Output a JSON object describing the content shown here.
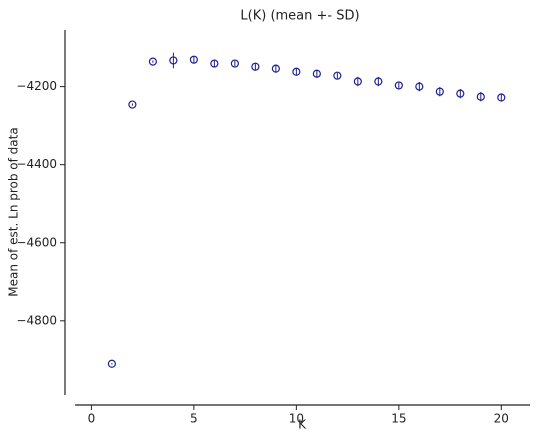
{
  "chart_data": {
    "type": "scatter",
    "title": "L(K) (mean +- SD)",
    "x_label": "K",
    "y_label": "Mean of est. Ln prob of data",
    "x": [
      1,
      2,
      3,
      4,
      5,
      6,
      7,
      8,
      9,
      10,
      11,
      12,
      13,
      14,
      15,
      16,
      17,
      18,
      19,
      20
    ],
    "series": [
      {
        "color": "#1f1f8f",
        "values": [
          -4910,
          -4246,
          -4136,
          -4133,
          -4131,
          -4141,
          -4141,
          -4149,
          -4154,
          -4162,
          -4167,
          -4172,
          -4187,
          -4187,
          -4197,
          -4200,
          -4213,
          -4218,
          -4226,
          -4228
        ],
        "errors": [
          2,
          3,
          3,
          20,
          8,
          8,
          7,
          10,
          10,
          8,
          8,
          7,
          12,
          12,
          10,
          12,
          12,
          12,
          12,
          9
        ]
      }
    ],
    "xlim": [
      -0.8,
      21.4
    ],
    "ylim": [
      -4990,
      -4055
    ],
    "xticks": [
      0,
      5,
      10,
      15,
      20
    ],
    "yticks": [
      {
        "value": -4200,
        "label": "−4200"
      },
      {
        "value": -4400,
        "label": "−4400"
      },
      {
        "value": -4600,
        "label": "−4600"
      },
      {
        "value": -4800,
        "label": "−4800"
      }
    ]
  }
}
